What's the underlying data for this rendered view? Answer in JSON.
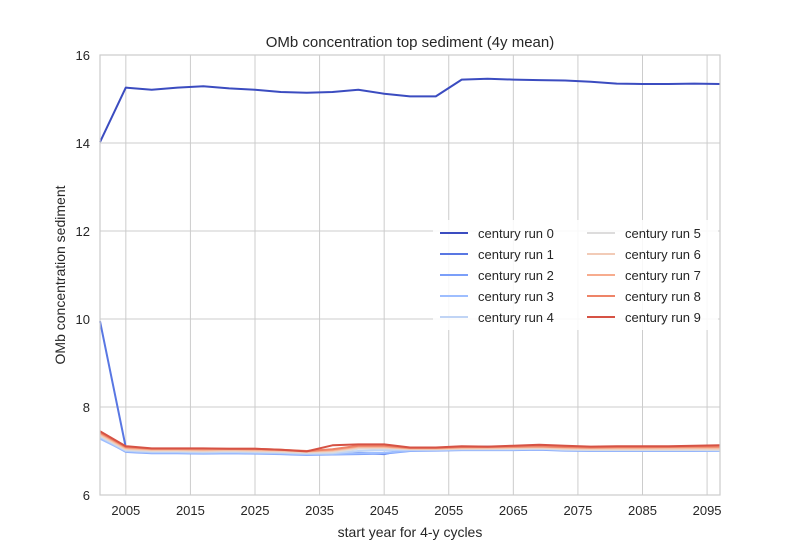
{
  "chart_data": {
    "type": "line",
    "title": "OMb concentration top sediment (4y mean)",
    "xlabel": "start year for 4-y cycles",
    "ylabel": "OMb concentration sediment",
    "xlim": [
      2001,
      2097
    ],
    "ylim": [
      6,
      16
    ],
    "xticks": [
      2005,
      2015,
      2025,
      2035,
      2045,
      2055,
      2065,
      2075,
      2085,
      2095
    ],
    "yticks": [
      6,
      8,
      10,
      12,
      14,
      16
    ],
    "grid": true,
    "legend_position": "center-right",
    "legend_columns": 2,
    "x": [
      2001,
      2005,
      2009,
      2013,
      2017,
      2021,
      2025,
      2029,
      2033,
      2037,
      2041,
      2045,
      2049,
      2053,
      2057,
      2061,
      2065,
      2069,
      2073,
      2077,
      2081,
      2085,
      2089,
      2093,
      2097
    ],
    "series": [
      {
        "name": "century run 0",
        "color": "#3b4cc0",
        "values": [
          14.02,
          15.26,
          15.21,
          15.26,
          15.29,
          15.24,
          15.21,
          15.16,
          15.14,
          15.16,
          15.21,
          15.12,
          15.06,
          15.06,
          15.44,
          15.46,
          15.44,
          15.43,
          15.42,
          15.39,
          15.35,
          15.34,
          15.34,
          15.35,
          15.34
        ]
      },
      {
        "name": "century run 1",
        "color": "#5977e3",
        "values": [
          9.95,
          7.08,
          7.03,
          7.03,
          7.02,
          7.03,
          7.03,
          7.0,
          6.97,
          6.95,
          6.96,
          6.93,
          7.06,
          7.07,
          7.1,
          7.1,
          7.09,
          7.1,
          7.08,
          7.06,
          7.07,
          7.07,
          7.08,
          7.09,
          7.1
        ]
      },
      {
        "name": "century run 2",
        "color": "#7b9ff9",
        "values": [
          7.3,
          6.98,
          6.95,
          6.95,
          6.94,
          6.95,
          6.94,
          6.93,
          6.91,
          6.92,
          6.93,
          6.94,
          7.0,
          7.01,
          7.02,
          7.02,
          7.02,
          7.03,
          7.01,
          7.0,
          7.0,
          7.0,
          7.0,
          7.0,
          7.0
        ]
      },
      {
        "name": "century run 3",
        "color": "#9ebeff",
        "values": [
          7.28,
          6.99,
          6.96,
          6.96,
          6.95,
          6.96,
          6.95,
          6.94,
          6.92,
          6.93,
          6.95,
          6.96,
          7.01,
          7.02,
          7.03,
          7.03,
          7.03,
          7.04,
          7.02,
          7.01,
          7.01,
          7.01,
          7.01,
          7.01,
          7.0
        ]
      },
      {
        "name": "century run 4",
        "color": "#c0d4f5",
        "values": [
          7.32,
          7.01,
          6.98,
          6.98,
          6.97,
          6.98,
          6.97,
          6.96,
          6.94,
          6.95,
          7.0,
          7.02,
          7.03,
          7.03,
          7.04,
          7.04,
          7.04,
          7.05,
          7.03,
          7.02,
          7.02,
          7.02,
          7.02,
          7.02,
          7.02
        ]
      },
      {
        "name": "century run 5",
        "color": "#dddcdc",
        "values": [
          7.35,
          7.03,
          7.0,
          7.0,
          6.99,
          7.0,
          6.99,
          6.98,
          6.96,
          6.97,
          7.05,
          7.06,
          7.04,
          7.04,
          7.05,
          7.05,
          7.05,
          7.06,
          7.04,
          7.03,
          7.03,
          7.03,
          7.03,
          7.03,
          7.03
        ]
      },
      {
        "name": "century run 6",
        "color": "#f2cbb7",
        "values": [
          7.37,
          7.05,
          7.02,
          7.02,
          7.01,
          7.02,
          7.01,
          7.0,
          6.98,
          7.0,
          7.08,
          7.08,
          7.05,
          7.05,
          7.06,
          7.06,
          7.07,
          7.08,
          7.06,
          7.05,
          7.05,
          7.05,
          7.05,
          7.06,
          7.05
        ]
      },
      {
        "name": "century run 7",
        "color": "#f7ac8e",
        "values": [
          7.4,
          7.07,
          7.04,
          7.04,
          7.03,
          7.04,
          7.03,
          7.02,
          6.99,
          7.02,
          7.1,
          7.1,
          7.06,
          7.06,
          7.08,
          7.08,
          7.09,
          7.1,
          7.08,
          7.07,
          7.07,
          7.07,
          7.08,
          7.08,
          7.08
        ]
      },
      {
        "name": "century run 8",
        "color": "#ee8468",
        "values": [
          7.42,
          7.09,
          7.05,
          7.05,
          7.05,
          7.05,
          7.05,
          7.03,
          7.0,
          7.04,
          7.12,
          7.12,
          7.07,
          7.07,
          7.09,
          7.09,
          7.1,
          7.11,
          7.09,
          7.08,
          7.09,
          7.09,
          7.09,
          7.1,
          7.1
        ]
      },
      {
        "name": "century run 9",
        "color": "#d65244",
        "values": [
          7.45,
          7.11,
          7.06,
          7.06,
          7.06,
          7.05,
          7.05,
          7.03,
          6.99,
          7.13,
          7.15,
          7.15,
          7.08,
          7.08,
          7.11,
          7.1,
          7.12,
          7.14,
          7.12,
          7.1,
          7.11,
          7.11,
          7.11,
          7.12,
          7.13
        ]
      }
    ]
  }
}
